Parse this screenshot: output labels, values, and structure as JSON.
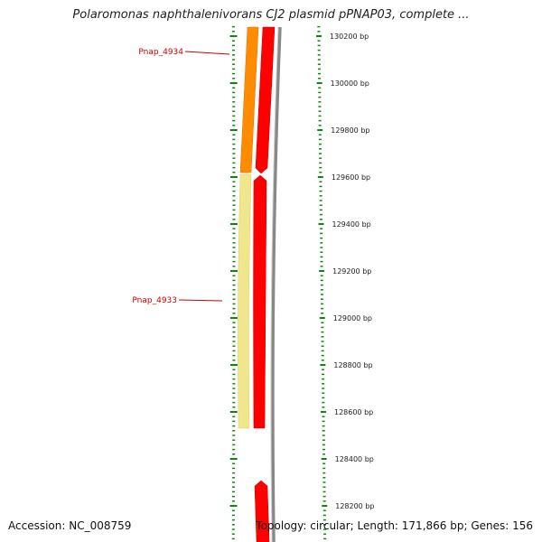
{
  "title": "Polaromonas naphthalenivorans CJ2 plasmid pPNAP03, complete ...",
  "accession_text": "Accession: NC_008759",
  "summary_text": "Topology: circular; Length: 171,866 bp; Genes: 156",
  "scale_ticks": [
    {
      "bp": 130200,
      "label": "130200 bp"
    },
    {
      "bp": 130000,
      "label": "130000 bp"
    },
    {
      "bp": 129800,
      "label": "129800 bp"
    },
    {
      "bp": 129600,
      "label": "129600 bp"
    },
    {
      "bp": 129400,
      "label": "129400 bp"
    },
    {
      "bp": 129200,
      "label": "129200 bp"
    },
    {
      "bp": 129000,
      "label": "129000 bp"
    },
    {
      "bp": 128800,
      "label": "128800 bp"
    },
    {
      "bp": 128600,
      "label": "128600 bp"
    },
    {
      "bp": 128400,
      "label": "128400 bp"
    },
    {
      "bp": 128200,
      "label": "128200 bp"
    }
  ],
  "genes": [
    {
      "name": "Pnap_4934",
      "color": "#ff8c00"
    },
    {
      "name": "Pnap_4933",
      "color": "#f0e68c"
    }
  ],
  "colors": {
    "tick": "#0a8a0a",
    "cds": "#ff0000",
    "backbone": "#808080",
    "label": "#cc0000"
  }
}
